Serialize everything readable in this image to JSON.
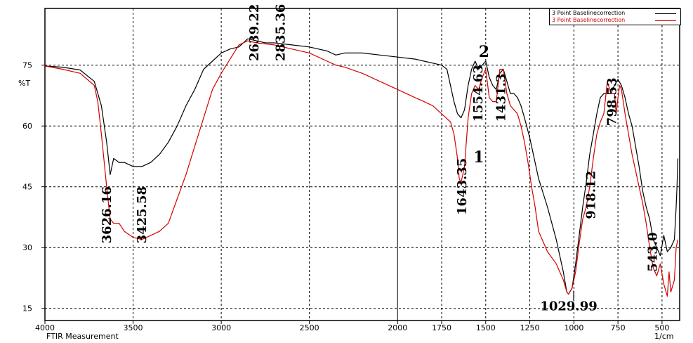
{
  "chart_data": {
    "type": "line",
    "ylabel": "%T",
    "x_axis_caption": "FTIR Measurement",
    "x_unit": "1/cm",
    "xlim": [
      4000,
      400
    ],
    "ylim": [
      12,
      89
    ],
    "x_ticks": [
      4000,
      3500,
      3000,
      2500,
      2000,
      1750,
      1500,
      1250,
      1000,
      750,
      500
    ],
    "y_ticks": [
      15,
      30,
      45,
      60,
      75
    ],
    "grid": true,
    "legend_position": "top-right",
    "series": [
      {
        "name": "3 Point Baselinecorrection",
        "color": "#000000",
        "points": [
          [
            4000,
            74.8
          ],
          [
            3900,
            74.5
          ],
          [
            3800,
            73.8
          ],
          [
            3720,
            71
          ],
          [
            3680,
            65
          ],
          [
            3650,
            56
          ],
          [
            3630,
            48
          ],
          [
            3610,
            52
          ],
          [
            3580,
            51
          ],
          [
            3550,
            51
          ],
          [
            3500,
            50
          ],
          [
            3450,
            50
          ],
          [
            3400,
            51
          ],
          [
            3350,
            53
          ],
          [
            3300,
            56
          ],
          [
            3250,
            60
          ],
          [
            3200,
            65
          ],
          [
            3150,
            69
          ],
          [
            3100,
            74
          ],
          [
            3050,
            76
          ],
          [
            3000,
            78
          ],
          [
            2950,
            79
          ],
          [
            2900,
            79.5
          ],
          [
            2850,
            81.5
          ],
          [
            2800,
            81
          ],
          [
            2750,
            80.5
          ],
          [
            2700,
            80.5
          ],
          [
            2600,
            80
          ],
          [
            2500,
            79.5
          ],
          [
            2450,
            79
          ],
          [
            2400,
            78.5
          ],
          [
            2350,
            77.5
          ],
          [
            2300,
            78
          ],
          [
            2200,
            78
          ],
          [
            2100,
            77.5
          ],
          [
            2000,
            77
          ],
          [
            1900,
            76.5
          ],
          [
            1850,
            76
          ],
          [
            1800,
            75.5
          ],
          [
            1750,
            75
          ],
          [
            1720,
            74
          ],
          [
            1700,
            70
          ],
          [
            1680,
            66
          ],
          [
            1660,
            63
          ],
          [
            1640,
            62
          ],
          [
            1620,
            64
          ],
          [
            1600,
            70
          ],
          [
            1580,
            74
          ],
          [
            1560,
            76
          ],
          [
            1540,
            74
          ],
          [
            1520,
            75
          ],
          [
            1500,
            76
          ],
          [
            1480,
            72
          ],
          [
            1460,
            70
          ],
          [
            1440,
            69
          ],
          [
            1420,
            73
          ],
          [
            1400,
            74
          ],
          [
            1380,
            71
          ],
          [
            1360,
            68
          ],
          [
            1340,
            68
          ],
          [
            1320,
            67
          ],
          [
            1300,
            65
          ],
          [
            1280,
            62
          ],
          [
            1250,
            57
          ],
          [
            1220,
            51
          ],
          [
            1200,
            47
          ],
          [
            1150,
            40
          ],
          [
            1100,
            32
          ],
          [
            1060,
            24
          ],
          [
            1040,
            19
          ],
          [
            1030,
            18.5
          ],
          [
            1010,
            20
          ],
          [
            990,
            26
          ],
          [
            970,
            33
          ],
          [
            950,
            40
          ],
          [
            930,
            46
          ],
          [
            910,
            53
          ],
          [
            890,
            58
          ],
          [
            870,
            63
          ],
          [
            850,
            67
          ],
          [
            830,
            68
          ],
          [
            810,
            68
          ],
          [
            790,
            68
          ],
          [
            770,
            70
          ],
          [
            750,
            71.5
          ],
          [
            730,
            70
          ],
          [
            710,
            67
          ],
          [
            690,
            63
          ],
          [
            670,
            60
          ],
          [
            650,
            55
          ],
          [
            630,
            50
          ],
          [
            610,
            44
          ],
          [
            590,
            40
          ],
          [
            570,
            37
          ],
          [
            550,
            32
          ],
          [
            530,
            30
          ],
          [
            510,
            28
          ],
          [
            490,
            33
          ],
          [
            470,
            29
          ],
          [
            450,
            30
          ],
          [
            430,
            32
          ],
          [
            420,
            40
          ],
          [
            415,
            45
          ],
          [
            410,
            52
          ]
        ]
      },
      {
        "name": "3 Point Baselinecorrection",
        "color": "#d40000",
        "points": [
          [
            4000,
            74.8
          ],
          [
            3900,
            74
          ],
          [
            3800,
            73
          ],
          [
            3720,
            70
          ],
          [
            3700,
            66
          ],
          [
            3680,
            58
          ],
          [
            3650,
            45
          ],
          [
            3630,
            37
          ],
          [
            3610,
            36
          ],
          [
            3580,
            36
          ],
          [
            3550,
            34
          ],
          [
            3500,
            32.5
          ],
          [
            3450,
            32
          ],
          [
            3400,
            33
          ],
          [
            3350,
            34
          ],
          [
            3300,
            36
          ],
          [
            3250,
            42
          ],
          [
            3200,
            48
          ],
          [
            3150,
            55
          ],
          [
            3100,
            62
          ],
          [
            3050,
            69
          ],
          [
            3000,
            73
          ],
          [
            2950,
            76.5
          ],
          [
            2900,
            80
          ],
          [
            2850,
            81
          ],
          [
            2800,
            80.5
          ],
          [
            2700,
            80
          ],
          [
            2600,
            79
          ],
          [
            2500,
            78
          ],
          [
            2400,
            76
          ],
          [
            2350,
            75
          ],
          [
            2300,
            74.5
          ],
          [
            2200,
            73
          ],
          [
            2100,
            71
          ],
          [
            2000,
            69
          ],
          [
            1900,
            67
          ],
          [
            1850,
            66
          ],
          [
            1800,
            65
          ],
          [
            1750,
            63
          ],
          [
            1700,
            61
          ],
          [
            1680,
            58
          ],
          [
            1660,
            52
          ],
          [
            1650,
            47
          ],
          [
            1640,
            46
          ],
          [
            1630,
            48
          ],
          [
            1620,
            50
          ],
          [
            1600,
            62
          ],
          [
            1580,
            68
          ],
          [
            1560,
            70
          ],
          [
            1540,
            69
          ],
          [
            1520,
            72
          ],
          [
            1500,
            74
          ],
          [
            1480,
            67
          ],
          [
            1460,
            66
          ],
          [
            1440,
            66
          ],
          [
            1420,
            74
          ],
          [
            1400,
            74
          ],
          [
            1380,
            68
          ],
          [
            1360,
            65
          ],
          [
            1340,
            64
          ],
          [
            1320,
            63
          ],
          [
            1300,
            60
          ],
          [
            1280,
            56
          ],
          [
            1260,
            51
          ],
          [
            1240,
            45
          ],
          [
            1220,
            40
          ],
          [
            1200,
            34
          ],
          [
            1150,
            29
          ],
          [
            1100,
            26
          ],
          [
            1060,
            22
          ],
          [
            1040,
            19
          ],
          [
            1030,
            18.5
          ],
          [
            1010,
            20
          ],
          [
            990,
            24
          ],
          [
            970,
            31
          ],
          [
            950,
            37
          ],
          [
            930,
            40
          ],
          [
            910,
            45
          ],
          [
            890,
            52
          ],
          [
            870,
            58
          ],
          [
            850,
            61
          ],
          [
            830,
            63
          ],
          [
            810,
            71
          ],
          [
            790,
            68
          ],
          [
            770,
            68
          ],
          [
            760,
            63
          ],
          [
            750,
            67
          ],
          [
            740,
            70
          ],
          [
            730,
            69
          ],
          [
            710,
            63
          ],
          [
            690,
            58
          ],
          [
            670,
            53
          ],
          [
            650,
            49
          ],
          [
            630,
            45
          ],
          [
            610,
            41
          ],
          [
            590,
            36
          ],
          [
            570,
            30
          ],
          [
            550,
            25
          ],
          [
            530,
            23
          ],
          [
            510,
            26
          ],
          [
            490,
            21
          ],
          [
            470,
            18
          ],
          [
            460,
            24
          ],
          [
            450,
            19
          ],
          [
            430,
            22
          ],
          [
            420,
            30
          ],
          [
            410,
            32
          ]
        ]
      }
    ],
    "peak_labels": [
      {
        "text": "3626.16",
        "x": 3626,
        "y": 31
      },
      {
        "text": "3425.58",
        "x": 3426,
        "y": 31
      },
      {
        "text": "2639.22",
        "x": 2790,
        "y": 76
      },
      {
        "text": "2835.36",
        "x": 2640,
        "y": 76
      },
      {
        "text": "1643.35",
        "x": 1610,
        "y": 38
      },
      {
        "text": "1554.63",
        "x": 1520,
        "y": 61
      },
      {
        "text": "1431.3",
        "x": 1390,
        "y": 61
      },
      {
        "text": "1029.99",
        "x": 1029,
        "y": 14.5
      },
      {
        "text": "918.12",
        "x": 880,
        "y": 37
      },
      {
        "text": "798.53",
        "x": 760,
        "y": 60
      },
      {
        "text": "543.0",
        "x": 530,
        "y": 24
      }
    ],
    "markers": [
      {
        "text": "2",
        "x": 1540,
        "y": 77
      },
      {
        "text": "1",
        "x": 1570,
        "y": 51
      }
    ]
  }
}
